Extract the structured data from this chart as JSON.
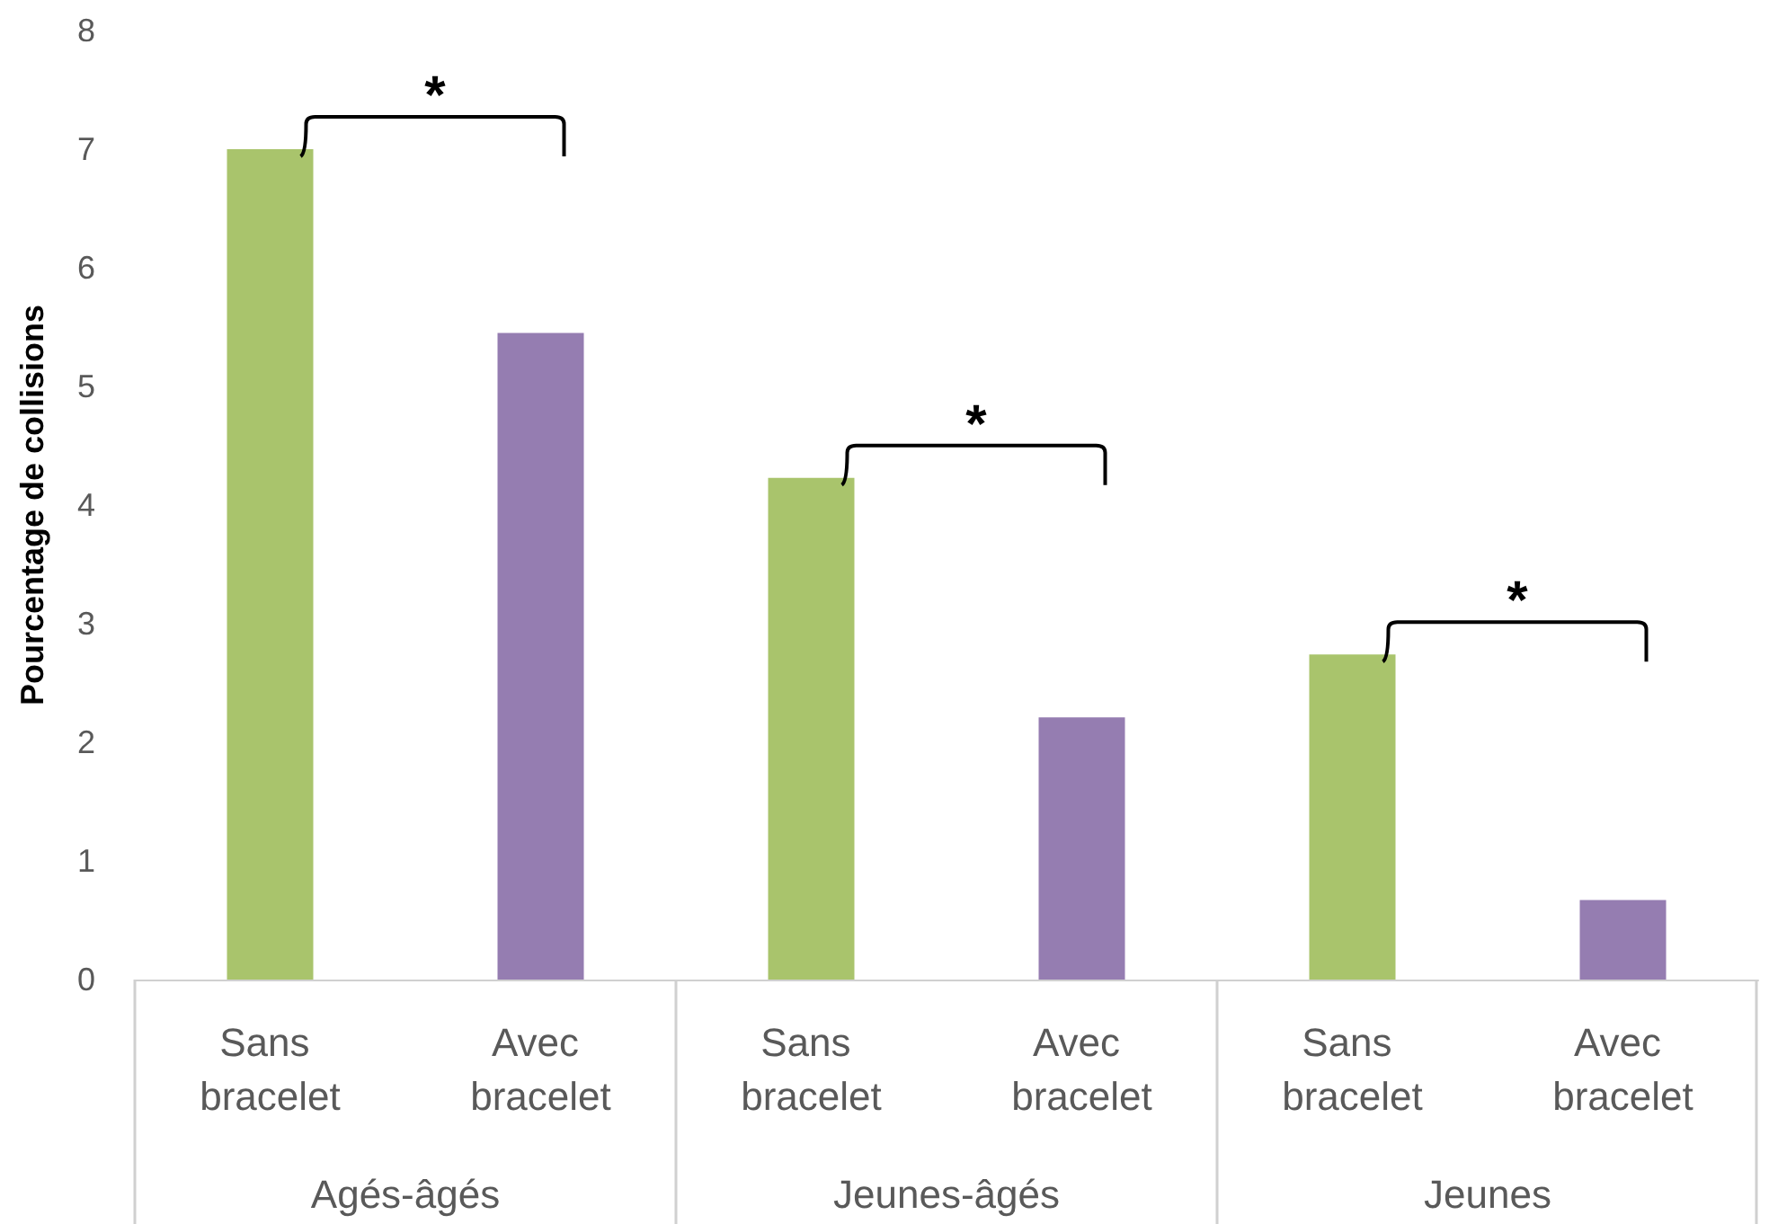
{
  "chart_data": {
    "type": "bar",
    "ylabel": "Pourcentage de collisions",
    "categories": [
      "Sans bracelet",
      "Avec bracelet",
      "Sans bracelet",
      "Avec bracelet",
      "Sans bracelet",
      "Avec bracelet"
    ],
    "values": [
      7.0,
      5.45,
      4.23,
      2.21,
      2.74,
      0.67
    ],
    "colors": [
      "#a9c46c",
      "#957db1",
      "#a9c46c",
      "#957db1",
      "#a9c46c",
      "#957db1"
    ],
    "ylim": [
      0,
      8
    ],
    "yticks": [
      0,
      1,
      2,
      3,
      4,
      5,
      6,
      7,
      8
    ],
    "grid": false,
    "annotations": [
      "Agés-âgés",
      "Jeunes-âgés",
      "Jeunes",
      "*",
      "*",
      "*"
    ]
  }
}
